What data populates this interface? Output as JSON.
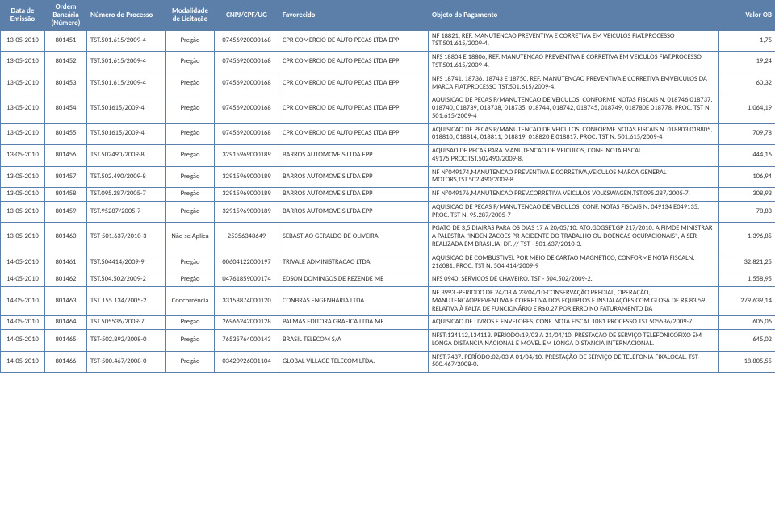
{
  "table": {
    "headers": [
      "Data de Emissão",
      "Ordem Bancária (Número)",
      "Número do Processo",
      "Modalidade de Licitação",
      "CNPJ/CPF/UG",
      "Favorecido",
      "Objeto do Pagamento",
      "Valor OB"
    ],
    "rows": [
      {
        "data": "13-05-2010",
        "ordem": "801451",
        "proc": "TST.501.615/2009-4",
        "modal": "Pregão",
        "cnpj": "07456920000168",
        "fav": "CPR COMERCIO DE AUTO PECAS LTDA EPP",
        "obj": "NF 18821, REF. MANUTENCAO PREVENTIVA E CORRETIVA EM VEICULOS FIAT.PROCESSO TST.501.615/2009-4.",
        "valor": "1,75"
      },
      {
        "data": "13-05-2010",
        "ordem": "801452",
        "proc": "TST.501.615/2009-4",
        "modal": "Pregão",
        "cnpj": "07456920000168",
        "fav": "CPR COMERCIO DE AUTO PECAS LTDA EPP",
        "obj": "NFS 18804 E 18806, REF. MANUTENCAO PREVENTIVA E CORRETIVA EM VEICULOS FIAT.PROCESSO TST.501.615/2009-4.",
        "valor": "19,24"
      },
      {
        "data": "13-05-2010",
        "ordem": "801453",
        "proc": "TST.501.615/2009-4",
        "modal": "Pregão",
        "cnpj": "07456920000168",
        "fav": "CPR COMERCIO DE AUTO PECAS LTDA EPP",
        "obj": "NFS 18741, 18736, 18743 E 18750, REF. MANUTENCAO PREVENTIVA E CORRETIVA EMVEICULOS DA MARCA FIAT.PROCESSO TST.501.615/2009-4.",
        "valor": "60,32"
      },
      {
        "data": "13-05-2010",
        "ordem": "801454",
        "proc": "TST.501615/2009-4",
        "modal": "Pregão",
        "cnpj": "07456920000168",
        "fav": "CPR COMERCIO DE AUTO PECAS LTDA EPP",
        "obj": "AQUISICAO DE PECAS P/MANUTENCAO DE VEICULOS, CONFORME NOTAS FISCAIS N. 018746,018737, 018740, 018739, 018738, 018735, 018744, 018742, 018745, 018749, 018780E 018778.   PROC. TST N. 501.615/2009-4",
        "valor": "1.064,19"
      },
      {
        "data": "13-05-2010",
        "ordem": "801455",
        "proc": "TST.501615/2009-4",
        "modal": "Pregão",
        "cnpj": "07456920000168",
        "fav": "CPR COMERCIO DE AUTO PECAS LTDA EPP",
        "obj": "AQUISICAO DE PECAS P/MANUTENCAO DE VEICULOS, CONFORME NOTAS FISCAIS N. 018803,018805, 018810, 018814, 018811, 018819, 018820 E 018817.           PROC. TST N. 501.615/2009-4",
        "valor": "709,78"
      },
      {
        "data": "13-05-2010",
        "ordem": "801456",
        "proc": "TST.502490/2009-8",
        "modal": "Pregão",
        "cnpj": "32915969000189",
        "fav": "BARROS AUTOMOVEIS LTDA EPP",
        "obj": "AQUISAO DE PECAS PARA MANUTENCAO DE VEICULOS, CONF. NOTA FISCAL 49175.PROC.TST.502490/2009-8.",
        "valor": "444,16"
      },
      {
        "data": "13-05-2010",
        "ordem": "801457",
        "proc": "TST.502.490/2009-8",
        "modal": "Pregão",
        "cnpj": "32915969000189",
        "fav": "BARROS AUTOMOVEIS LTDA EPP",
        "obj": "NF Nº049174,MANUTENCAO PREVENTIVA E.CORRETIVA,VEICULOS MARCA GENERAL MOTORS,TST.502.490/2009-8.",
        "valor": "106,94"
      },
      {
        "data": "13-05-2010",
        "ordem": "801458",
        "proc": "TST.095.287/2005-7",
        "modal": "Pregão",
        "cnpj": "32915969000189",
        "fav": "BARROS AUTOMOVEIS LTDA EPP",
        "obj": "NF Nº049176,MANUTENCAO PREV.CORRETIVA VEICULOS VOLKSWAGEN.TST.095.287/2005-7.",
        "valor": "308,93"
      },
      {
        "data": "13-05-2010",
        "ordem": "801459",
        "proc": "TST.95287/2005-7",
        "modal": "Pregão",
        "cnpj": "32915969000189",
        "fav": "BARROS AUTOMOVEIS LTDA EPP",
        "obj": "AQUISICAO DE PECAS P/MANUTENCAO DE VEICULOS, CONF. NOTAS FISCAIS N. 049134 E049135.   PROC. TST N. 95.287/2005-7",
        "valor": "78,83"
      },
      {
        "data": "13-05-2010",
        "ordem": "801460",
        "proc": "TST 501.637/2010-3",
        "modal": "Não se Aplica",
        "cnpj": "25356348649",
        "fav": "SEBASTIAO GERALDO DE OLIVEIRA",
        "obj": "PGATO DE 3,5 DIAIRAS PARA OS DIAS 17 A 20/05/10. ATO.GDGSET.GP 217/2010. A FIMDE MINISTRAR A PALESTRA \"INDENIZACOES PR ACIDENTE DO TRABALHO OU DOENCAS OCUPACIONAIS\", A SER REALIZADA EM BRASILIA- DF. // TST - 501.637/2010-3.",
        "valor": "1.396,85"
      },
      {
        "data": "14-05-2010",
        "ordem": "801461",
        "proc": "TST.504414/2009-9",
        "modal": "Pregão",
        "cnpj": "00604122000197",
        "fav": "TRIVALE ADMINISTRACAO LTDA",
        "obj": "AQUISICAO DE COMBUSTIVEL POR MEIO DE CARTAO MAGNETICO,  CONFORME  NOTA FISCALN. 216081.   PROC. TST N. 504.414/2009-9",
        "valor": "32.821,25"
      },
      {
        "data": "14-05-2010",
        "ordem": "801462",
        "proc": "TST.504.502/2009-2",
        "modal": "Pregão",
        "cnpj": "04761859000174",
        "fav": "EDSON DOMINGOS DE REZENDE ME",
        "obj": "NFS 0940, SERVICOS DE CHAVEIRO. TST - 504.502/2009-2.",
        "valor": "1.558,95"
      },
      {
        "data": "14-05-2010",
        "ordem": "801463",
        "proc": "TST 155.134/2005-2",
        "modal": "Concorrência",
        "cnpj": "33158874000120",
        "fav": "CONBRAS ENGENHARIA LTDA",
        "obj": "NF 3993 -PERIODO DE 24/03 A 23/04/10-CONSERVAÇÃO PREDIAL, OPERAÇÃO, MANUTENCAOPREVENTIVA E CORRETIVA DOS EQUIPTOS E INSTALAÇÕES,COM GLOSA DE R$ 83,59 RELATIVA À FALTA DE FUNCIONÁRIO E R$0,27 POR ERRO NO FATURAMENTO DA",
        "valor": "279.639,14"
      },
      {
        "data": "14-05-2010",
        "ordem": "801464",
        "proc": "TST.505536/2009-7",
        "modal": "Pregão",
        "cnpj": "26966242000128",
        "fav": "PALMAS EDITORA GRAFICA LTDA ME",
        "obj": "AQUISICAO DE LIVROS E ENVELOPES, CONF. NOTA FISCAL 1081.PROCESSO TST.505536/2009-7.",
        "valor": "605,06"
      },
      {
        "data": "14-05-2010",
        "ordem": "801465",
        "proc": "TST-502.892/2008-0",
        "modal": "Pregão",
        "cnpj": "76535764000143",
        "fav": "BRASIL TELECOM S/A",
        "obj": "NFST:134112,134113. PERÍODO:19/03 A 21/04/10. PRESTAÇÃO DE SERVIÇO TELEFÔNICOFIXO EM LONGA DISTANCIA NACIONAL E MOVEL EM LONGA DISTANCIA INTERNACIONAL.",
        "valor": "645,02"
      },
      {
        "data": "14-05-2010",
        "ordem": "801466",
        "proc": "TST-500.467/2008-0",
        "modal": "Pregão",
        "cnpj": "03420926001104",
        "fav": "GLOBAL VILLAGE TELECOM LTDA.",
        "obj": "NFST:7437. PERÍODO:02/03 A 01/04/10. PRESTAÇÃO DE SERVIÇO DE TELEFONIA FIXALOCAL. TST-500.467/2008-0.",
        "valor": "18.805,55"
      }
    ]
  },
  "style": {
    "header_bg": "#5b7fa8",
    "header_fg": "#ffffff",
    "border_color": "#5b7fa8",
    "body_fg": "#333333",
    "font_family": "Calibri, Arial, sans-serif",
    "header_fontsize": 9,
    "body_fontsize": 8.5
  }
}
